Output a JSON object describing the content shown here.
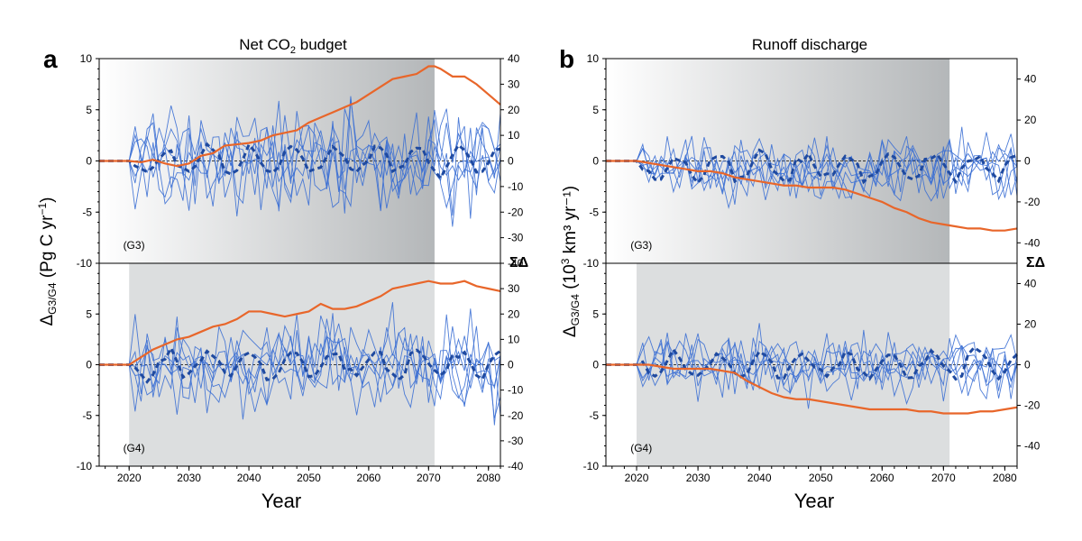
{
  "colors": {
    "member": "#3b6fd4",
    "mean": "#1f4aa0",
    "cumulative": "#e8662a",
    "shade_dark": "#b9bcbe",
    "shade_light": "#ffffff",
    "shade_flat": "#dcdedf"
  },
  "x_label": "Year",
  "x_ticks": [
    2020,
    2030,
    2040,
    2050,
    2060,
    2070,
    2080
  ],
  "sigma_symbol": "ΣΔ",
  "chart_data": [
    {
      "panel": "a",
      "type": "line",
      "title_main": "Net CO",
      "title_sub": "2",
      "title_rest": " budget",
      "ylabel_main": "Δ",
      "ylabel_sub": "G3/G4",
      "ylabel_rest": " (Pg C yr",
      "ylabel_sup": "−1",
      "ylabel_end": ")",
      "xlim": [
        2015,
        2082
      ],
      "upper": {
        "label": "(G3)",
        "ylim": [
          -10,
          10
        ],
        "left_ticks": [
          "10",
          "5",
          "0",
          "-5",
          "-10"
        ],
        "right_ylim": [
          -40,
          40
        ],
        "right_ticks": [
          "40",
          "30",
          "20",
          "10",
          "0",
          "-10",
          "-20",
          "-30",
          "-40"
        ],
        "shade": {
          "from": 2015,
          "to": 2071,
          "style": "gradient"
        },
        "cumulative": [
          [
            2015,
            0
          ],
          [
            2020,
            0
          ],
          [
            2022,
            -0.5
          ],
          [
            2024,
            0.5
          ],
          [
            2026,
            -1
          ],
          [
            2028,
            -2
          ],
          [
            2030,
            -1
          ],
          [
            2032,
            2
          ],
          [
            2034,
            3
          ],
          [
            2036,
            6
          ],
          [
            2038,
            6.5
          ],
          [
            2040,
            7
          ],
          [
            2042,
            8
          ],
          [
            2044,
            10
          ],
          [
            2046,
            11
          ],
          [
            2048,
            12
          ],
          [
            2050,
            15
          ],
          [
            2052,
            17
          ],
          [
            2054,
            19
          ],
          [
            2056,
            21
          ],
          [
            2058,
            23
          ],
          [
            2060,
            26
          ],
          [
            2062,
            29
          ],
          [
            2064,
            32
          ],
          [
            2066,
            33
          ],
          [
            2068,
            34
          ],
          [
            2070,
            37
          ],
          [
            2071,
            37
          ],
          [
            2072,
            36
          ],
          [
            2074,
            33
          ],
          [
            2076,
            33
          ],
          [
            2078,
            30
          ],
          [
            2080,
            26
          ],
          [
            2082,
            22
          ]
        ]
      },
      "lower": {
        "label": "(G4)",
        "ylim": [
          -10,
          10
        ],
        "left_ticks": [
          "5",
          "0",
          "-5",
          "-10"
        ],
        "right_ylim": [
          -40,
          40
        ],
        "right_ticks": [
          "30",
          "20",
          "10",
          "0",
          "-10",
          "-20",
          "-30",
          "-40"
        ],
        "shade": {
          "from": 2020,
          "to": 2071,
          "style": "flat"
        },
        "cumulative": [
          [
            2015,
            0
          ],
          [
            2020,
            0
          ],
          [
            2022,
            3
          ],
          [
            2024,
            6
          ],
          [
            2026,
            8
          ],
          [
            2028,
            10
          ],
          [
            2030,
            11
          ],
          [
            2032,
            13
          ],
          [
            2034,
            15
          ],
          [
            2036,
            16
          ],
          [
            2038,
            18
          ],
          [
            2040,
            21
          ],
          [
            2042,
            21
          ],
          [
            2044,
            20
          ],
          [
            2046,
            19
          ],
          [
            2048,
            20
          ],
          [
            2050,
            21
          ],
          [
            2052,
            24
          ],
          [
            2054,
            22
          ],
          [
            2056,
            22
          ],
          [
            2058,
            23
          ],
          [
            2060,
            25
          ],
          [
            2062,
            27
          ],
          [
            2064,
            30
          ],
          [
            2066,
            31
          ],
          [
            2068,
            32
          ],
          [
            2070,
            33
          ],
          [
            2072,
            32
          ],
          [
            2074,
            32
          ],
          [
            2076,
            33
          ],
          [
            2078,
            31
          ],
          [
            2080,
            30
          ],
          [
            2082,
            29
          ]
        ]
      }
    },
    {
      "panel": "b",
      "type": "line",
      "title_main": "Runoff discharge",
      "title_sub": "",
      "title_rest": "",
      "ylabel_main": "Δ",
      "ylabel_sub": "G3/G4",
      "ylabel_rest": " (10",
      "ylabel_sup": "3",
      "ylabel_end": " km³ yr⁻¹)",
      "xlim": [
        2015,
        2082
      ],
      "upper": {
        "label": "(G3)",
        "ylim": [
          -10,
          10
        ],
        "left_ticks": [
          "10",
          "5",
          "0",
          "-5",
          "-10"
        ],
        "right_ylim": [
          -50,
          50
        ],
        "right_ticks": [
          "40",
          "20",
          "0",
          "-20",
          "-40"
        ],
        "shade": {
          "from": 2015,
          "to": 2071,
          "style": "gradient"
        },
        "cumulative": [
          [
            2015,
            0
          ],
          [
            2020,
            0
          ],
          [
            2022,
            -1
          ],
          [
            2024,
            -2
          ],
          [
            2026,
            -3
          ],
          [
            2028,
            -4
          ],
          [
            2030,
            -5
          ],
          [
            2032,
            -5
          ],
          [
            2034,
            -6
          ],
          [
            2036,
            -8
          ],
          [
            2038,
            -9
          ],
          [
            2040,
            -10
          ],
          [
            2042,
            -11
          ],
          [
            2044,
            -12
          ],
          [
            2046,
            -12
          ],
          [
            2048,
            -13
          ],
          [
            2050,
            -13
          ],
          [
            2052,
            -13
          ],
          [
            2054,
            -14
          ],
          [
            2056,
            -16
          ],
          [
            2058,
            -18
          ],
          [
            2060,
            -20
          ],
          [
            2062,
            -23
          ],
          [
            2064,
            -25
          ],
          [
            2066,
            -28
          ],
          [
            2068,
            -30
          ],
          [
            2070,
            -31
          ],
          [
            2072,
            -32
          ],
          [
            2074,
            -33
          ],
          [
            2076,
            -33
          ],
          [
            2078,
            -34
          ],
          [
            2080,
            -34
          ],
          [
            2082,
            -33
          ]
        ]
      },
      "lower": {
        "label": "(G4)",
        "ylim": [
          -10,
          10
        ],
        "left_ticks": [
          "5",
          "0",
          "-5",
          "-10"
        ],
        "right_ylim": [
          -50,
          50
        ],
        "right_ticks": [
          "40",
          "20",
          "0",
          "-20",
          "-40"
        ],
        "shade": {
          "from": 2020,
          "to": 2071,
          "style": "flat"
        },
        "cumulative": [
          [
            2015,
            0
          ],
          [
            2020,
            0
          ],
          [
            2022,
            0
          ],
          [
            2024,
            -1
          ],
          [
            2026,
            -2
          ],
          [
            2028,
            -2
          ],
          [
            2030,
            -2
          ],
          [
            2032,
            -2
          ],
          [
            2034,
            -3
          ],
          [
            2036,
            -4
          ],
          [
            2038,
            -8
          ],
          [
            2040,
            -11
          ],
          [
            2042,
            -14
          ],
          [
            2044,
            -16
          ],
          [
            2046,
            -17
          ],
          [
            2048,
            -17
          ],
          [
            2050,
            -18
          ],
          [
            2052,
            -19
          ],
          [
            2054,
            -20
          ],
          [
            2056,
            -21
          ],
          [
            2058,
            -22
          ],
          [
            2060,
            -22
          ],
          [
            2062,
            -22
          ],
          [
            2064,
            -22
          ],
          [
            2066,
            -23
          ],
          [
            2068,
            -23
          ],
          [
            2070,
            -24
          ],
          [
            2072,
            -24
          ],
          [
            2074,
            -24
          ],
          [
            2076,
            -23
          ],
          [
            2078,
            -23
          ],
          [
            2080,
            -22
          ],
          [
            2082,
            -21
          ]
        ]
      }
    }
  ]
}
